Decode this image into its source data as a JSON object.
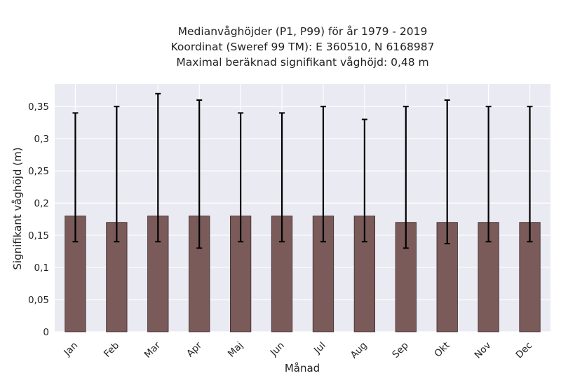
{
  "colors": {
    "bar": "#7b5a5a",
    "bar_edge": "#3a2a2a",
    "error_bar": "#000000",
    "plot_background": "#eaeaf2",
    "grid": "#ffffff"
  },
  "chart_data": {
    "type": "bar",
    "title": [
      "Medianvåghöjder (P1, P99) för år 1979 - 2019",
      "Koordinat (Sweref 99 TM): E 360510, N 6168987",
      "Maximal beräknad signifikant våghöjd: 0,48 m"
    ],
    "xlabel": "Månad",
    "ylabel": "Signifikant våghöjd (m)",
    "categories": [
      "Jan",
      "Feb",
      "Mar",
      "Apr",
      "Maj",
      "Jun",
      "Jul",
      "Aug",
      "Sep",
      "Okt",
      "Nov",
      "Dec"
    ],
    "values": [
      0.18,
      0.17,
      0.18,
      0.18,
      0.18,
      0.18,
      0.18,
      0.18,
      0.17,
      0.17,
      0.17,
      0.17
    ],
    "p1": [
      0.14,
      0.14,
      0.14,
      0.13,
      0.14,
      0.14,
      0.14,
      0.14,
      0.13,
      0.137,
      0.14,
      0.14
    ],
    "p99": [
      0.34,
      0.35,
      0.37,
      0.36,
      0.34,
      0.34,
      0.35,
      0.33,
      0.35,
      0.36,
      0.35,
      0.35
    ],
    "ylim": [
      0,
      0.385
    ],
    "yticks": [
      "0",
      "0,05",
      "0,1",
      "0,15",
      "0,2",
      "0,25",
      "0,3",
      "0,35"
    ],
    "grid": true,
    "legend": "none"
  }
}
